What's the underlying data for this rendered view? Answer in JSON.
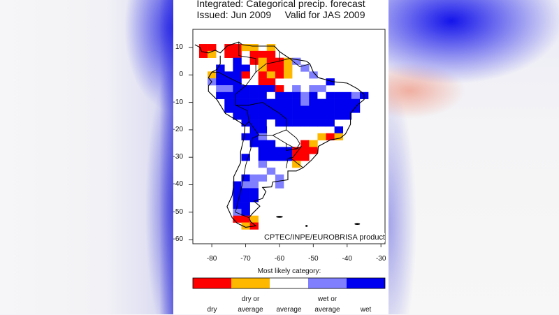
{
  "title_line1": "Integrated: Categorical precip. forecast",
  "title_line2": "Issued: Jun 2009     Valid for JAS 2009",
  "credit": "CPTEC/INPE/EUROBRISA product",
  "axes": {
    "x_ticks": [
      "-80",
      "-70",
      "-60",
      "-50",
      "-40",
      "-30"
    ],
    "x_values": [
      -80,
      -70,
      -60,
      -50,
      -40,
      -30
    ],
    "y_ticks": [
      "10",
      "0",
      "-10",
      "-20",
      "-30",
      "-40",
      "-50",
      "-60"
    ],
    "y_values": [
      10,
      0,
      -10,
      -20,
      -30,
      -40,
      -50,
      -60
    ],
    "lon_range": [
      -85.6,
      -28.8
    ],
    "lat_range": [
      16.6,
      -61.5
    ]
  },
  "legend": {
    "title": "Most likely category:",
    "categories": [
      {
        "key": "R",
        "line1": "",
        "line2": "dry",
        "color": "#ff0000"
      },
      {
        "key": "O",
        "line1": "dry or",
        "line2": "average",
        "color": "#ffb800"
      },
      {
        "key": "W",
        "line1": "",
        "line2": "average",
        "color": "#ffffff"
      },
      {
        "key": "L",
        "line1": "wet or",
        "line2": "average",
        "color": "#8080ff"
      },
      {
        "key": "B",
        "line1": "",
        "line2": "wet",
        "color": "#0000f0"
      }
    ]
  },
  "grid": {
    "lon_start": -83.75,
    "lat_start": 11.25,
    "step_deg": 2.5,
    "rows": [
      "RR.RROO.O...........",
      "RO.RR.RRR...........",
      "....B.RORROL........",
      "..B.BB.ORRO.L.......",
      ".OBBBR.RORO..L......",
      ".LBBB..RR......B....",
      "..LLBBBBBR.L.LL.....",
      "..BBBBBBWBBBLBWBBBLB",
      "...BBBBBBBBBLBBBBBB.",
      "...BBBBBBBBBBBBBBBB.",
      "....BBBBBBBBBBBBBB..",
      ".....BBBWBBBBBBB....",
      "......BB........B...",
      ".....BBL......ORO...",
      "......BBB...RO......",
      ".......BBBBRRR......",
      ".....B.BBBBRR.......",
      ".......L...O........",
      "........L...........",
      ".....BLL.L..........",
      "....BLL..L..........",
      "....BBB.............",
      "....BBB.............",
      "....BB..............",
      "....LB..............",
      "....RRO.............",
      ".....OR............."
    ]
  }
}
